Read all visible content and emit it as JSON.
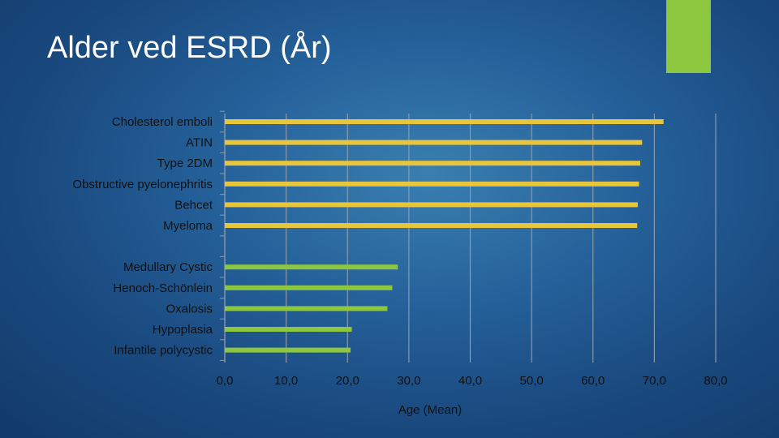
{
  "slide": {
    "title": "Alder ved ESRD (År)",
    "accent_color": "#8dc63f"
  },
  "chart_data": {
    "type": "bar",
    "orientation": "horizontal",
    "title": "",
    "xlabel": "Age (Mean)",
    "ylabel": "",
    "xlim": [
      0,
      80
    ],
    "x_ticks": [
      "0,0",
      "10,0",
      "20,0",
      "30,0",
      "40,0",
      "50,0",
      "60,0",
      "70,0",
      "80,0"
    ],
    "grid": true,
    "categories": [
      "Cholesterol emboli",
      "ATIN",
      "Type 2DM",
      "Obstructive pyelonephritis",
      "Behcet",
      "Myeloma",
      "",
      "Medullary Cystic",
      "Henoch-Schönlein",
      "Oxalosis",
      "Hypoplasia",
      "Infantile polycystic"
    ],
    "values": [
      71.5,
      68.0,
      67.7,
      67.5,
      67.3,
      67.2,
      null,
      28.2,
      27.3,
      26.5,
      20.7,
      20.5
    ],
    "colors": [
      "#e8c53a",
      "#e8c53a",
      "#e8c53a",
      "#e8c53a",
      "#e8c53a",
      "#e8c53a",
      null,
      "#8dc63f",
      "#8dc63f",
      "#8dc63f",
      "#8dc63f",
      "#8dc63f"
    ]
  }
}
